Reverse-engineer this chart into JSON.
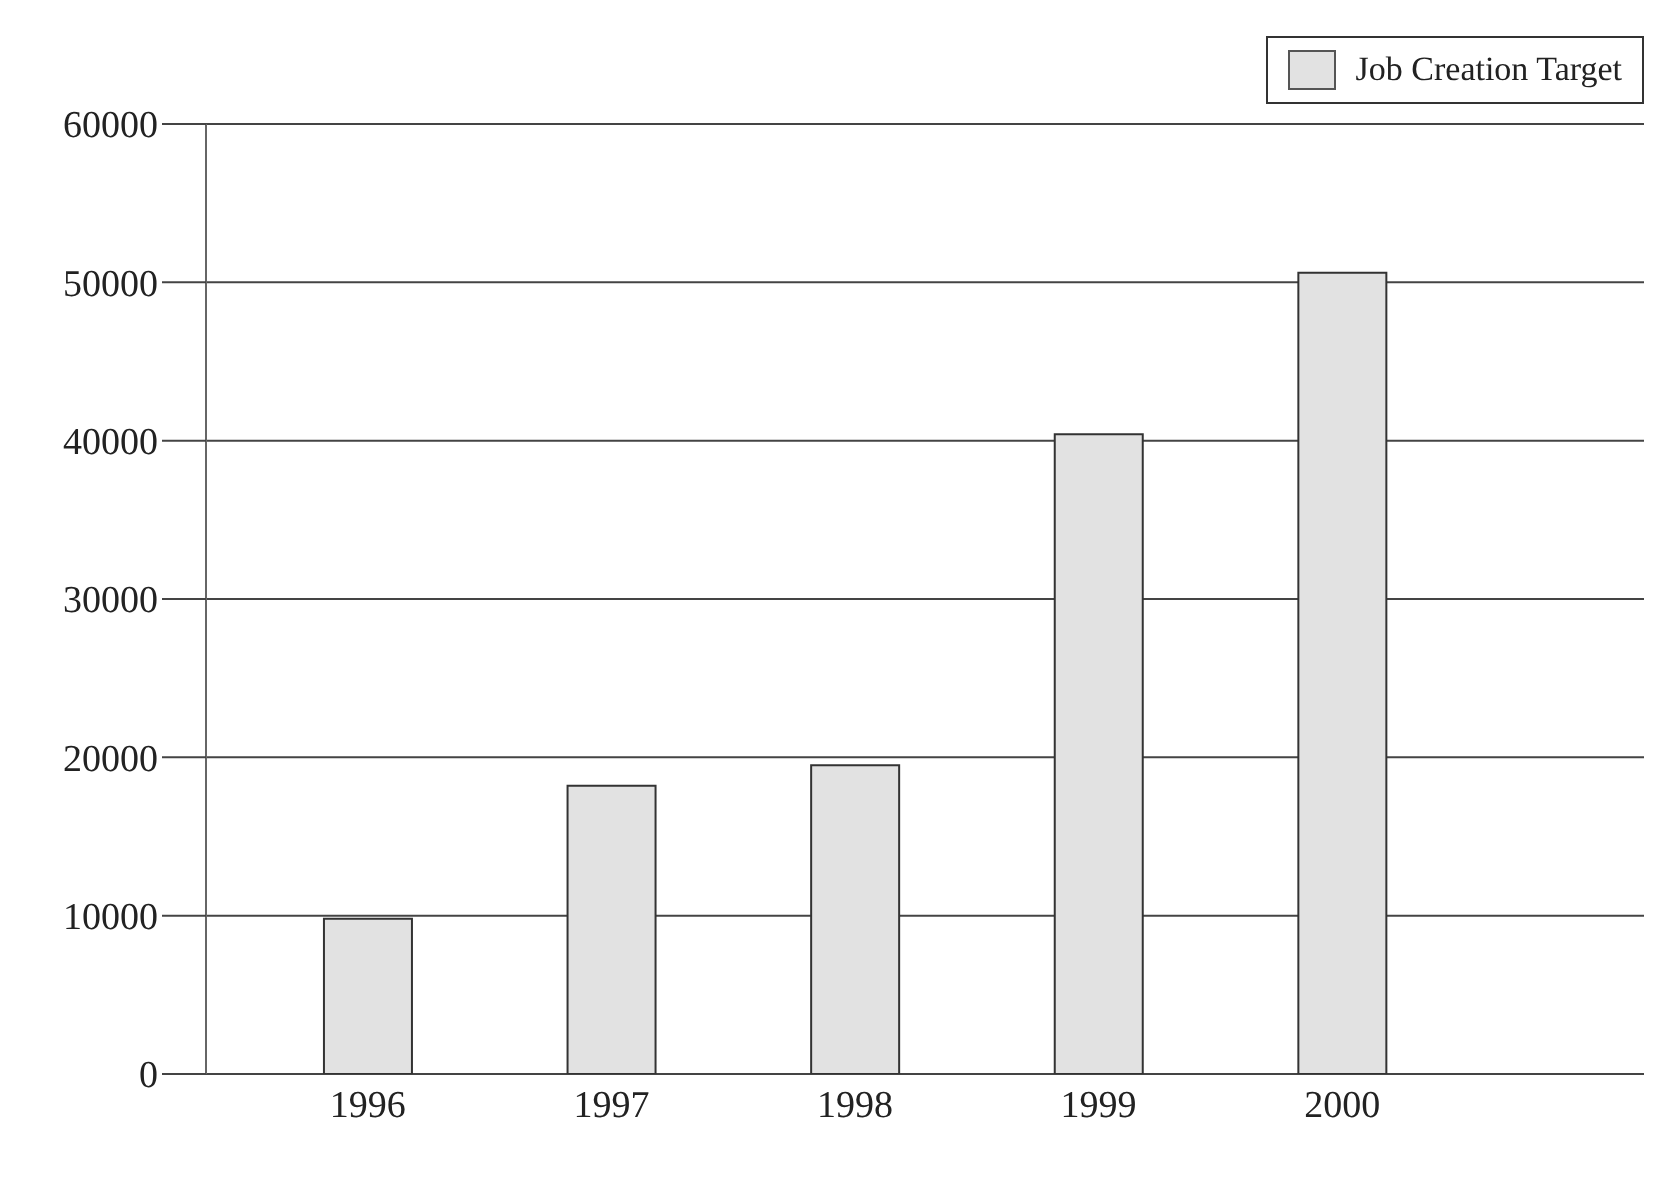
{
  "chart_data": {
    "type": "bar",
    "categories": [
      "1996",
      "1997",
      "1998",
      "1999",
      "2000"
    ],
    "series": [
      {
        "name": "Job Creation Target",
        "color": "#e2e2e2",
        "values": [
          9800,
          18200,
          19500,
          40400,
          50600
        ]
      }
    ],
    "ylim": [
      0,
      60000
    ],
    "yticks": [
      0,
      10000,
      20000,
      30000,
      40000,
      50000,
      60000
    ],
    "grid": "y",
    "legend": "top right"
  }
}
